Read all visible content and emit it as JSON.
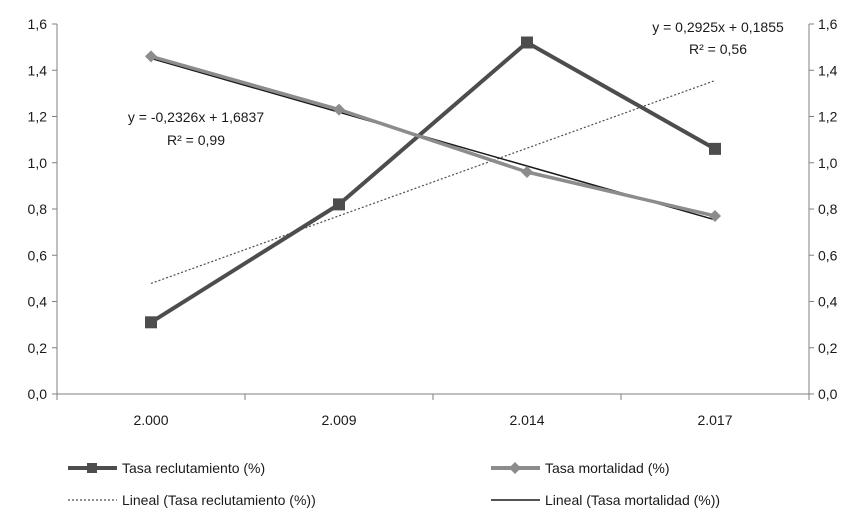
{
  "chart_data": {
    "type": "line",
    "categories": [
      "2.000",
      "2.009",
      "2.014",
      "2.017"
    ],
    "ylim": [
      0,
      1.6
    ],
    "y_ticks": [
      "0,0",
      "0,2",
      "0,4",
      "0,6",
      "0,8",
      "1,0",
      "1,2",
      "1,4",
      "1,6"
    ],
    "y_ticks_right": [
      "0,0",
      "0,2",
      "0,4",
      "0,6",
      "0,8",
      "1,0",
      "1,2",
      "1,4",
      "1,6"
    ],
    "grid": false,
    "legend_position": "bottom",
    "series": [
      {
        "name": "Tasa reclutamiento (%)",
        "values": [
          0.31,
          0.82,
          1.52,
          1.06
        ],
        "color": "#4d4d4d",
        "marker": "square"
      },
      {
        "name": "Tasa mortalidad (%)",
        "values": [
          1.46,
          1.23,
          0.96,
          0.77
        ],
        "color": "#8c8c8c",
        "marker": "diamond"
      }
    ],
    "trendlines": [
      {
        "name": "Lineal (Tasa reclutamiento (%))",
        "slope": 0.2925,
        "intercept": 0.1855,
        "style": "dotted",
        "color": "#4d4d4d",
        "equation": "y = 0,2925x + 0,1855",
        "r2": "R² = 0,56"
      },
      {
        "name": "Lineal (Tasa mortalidad (%))",
        "slope": -0.2326,
        "intercept": 1.6837,
        "style": "solid",
        "color": "#1a1a1a",
        "equation": "y = -0,2326x + 1,6837",
        "r2": "R² = 0,99"
      }
    ]
  }
}
